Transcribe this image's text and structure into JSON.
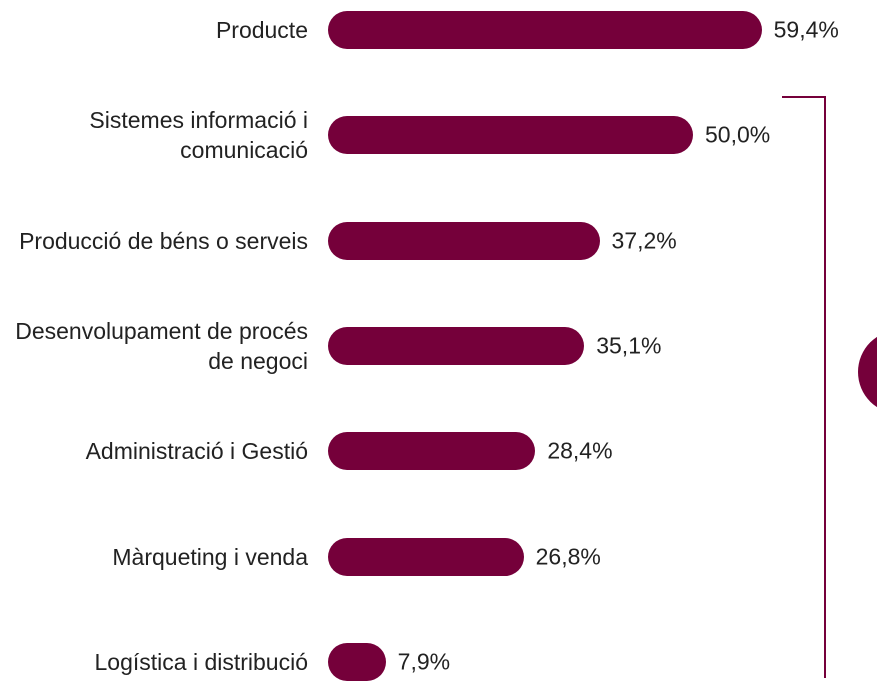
{
  "chart_data": {
    "type": "bar",
    "categories": [
      "Producte",
      "Sistemes informació i comunicació",
      "Producció de béns o serveis",
      "Desenvolupament de procés de negoci",
      "Administració i Gestió",
      "Màrqueting i venda",
      "Logística i distribució"
    ],
    "values": [
      59.4,
      50.0,
      37.2,
      35.1,
      28.4,
      26.8,
      7.9
    ],
    "value_labels": [
      "59,4%",
      "50,0%",
      "37,2%",
      "35,1%",
      "28,4%",
      "26,8%",
      "7,9%"
    ],
    "color": "#75003a"
  }
}
